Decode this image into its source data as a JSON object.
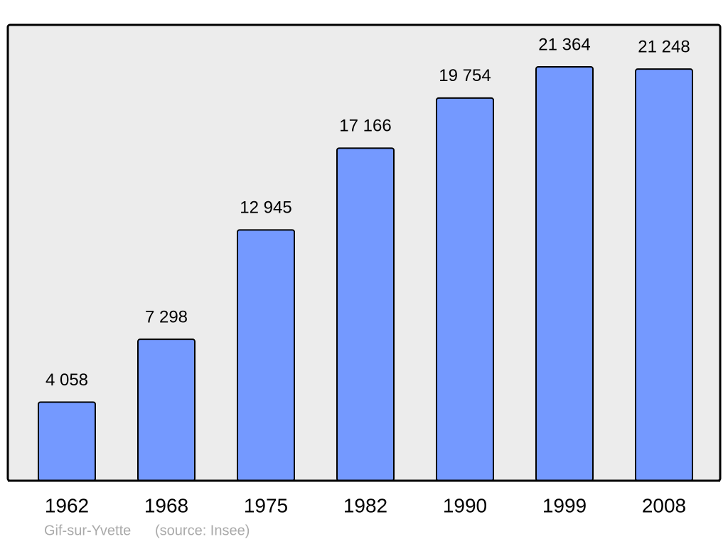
{
  "chart_data": {
    "type": "bar",
    "title": "Gif-sur-Yvette",
    "source": "(source: Insee)",
    "categories": [
      "1962",
      "1968",
      "1975",
      "1982",
      "1990",
      "1999",
      "2008"
    ],
    "values": [
      4058,
      7298,
      12945,
      17166,
      19754,
      21364,
      21248
    ],
    "value_labels": [
      "4 058",
      "7 298",
      "12 945",
      "17 166",
      "19 754",
      "21 364",
      "21 248"
    ],
    "color": "#7499ff"
  }
}
